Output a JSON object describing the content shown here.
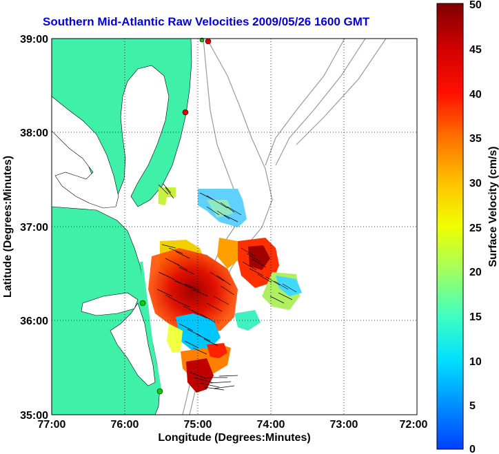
{
  "title": "Southern Mid-Atlantic Raw Velocities 2009/05/26 1600 GMT",
  "x_axis": {
    "label": "Longitude (Degrees:Minutes)",
    "ticks": [
      "77:00",
      "76:00",
      "75:00",
      "74:00",
      "73:00",
      "72:00"
    ]
  },
  "y_axis": {
    "label": "Latitude (Degrees:Minutes)",
    "ticks": [
      "39:00",
      "38:00",
      "37:00",
      "36:00",
      "35:00"
    ]
  },
  "colorbar": {
    "label": "Surface Velocity (cm/s)",
    "ticks": [
      "50",
      "45",
      "40",
      "35",
      "30",
      "25",
      "20",
      "15",
      "10",
      "5",
      "0"
    ],
    "min": 0,
    "max": 50
  },
  "map": {
    "lon_range": [
      -77,
      -72
    ],
    "lat_range": [
      35,
      39
    ],
    "land_color": "#3ef0a8",
    "grid": "dotted",
    "stations": [
      {
        "lon": -74.85,
        "lat": 38.96,
        "color": "#e00000"
      },
      {
        "lon": -74.98,
        "lat": 38.97,
        "color": "#00d000"
      },
      {
        "lon": -75.15,
        "lat": 38.22,
        "color": "#e00000"
      },
      {
        "lon": -75.7,
        "lat": 36.17,
        "color": "#00d000"
      },
      {
        "lon": -75.55,
        "lat": 35.25,
        "color": "#00d000"
      }
    ]
  }
}
